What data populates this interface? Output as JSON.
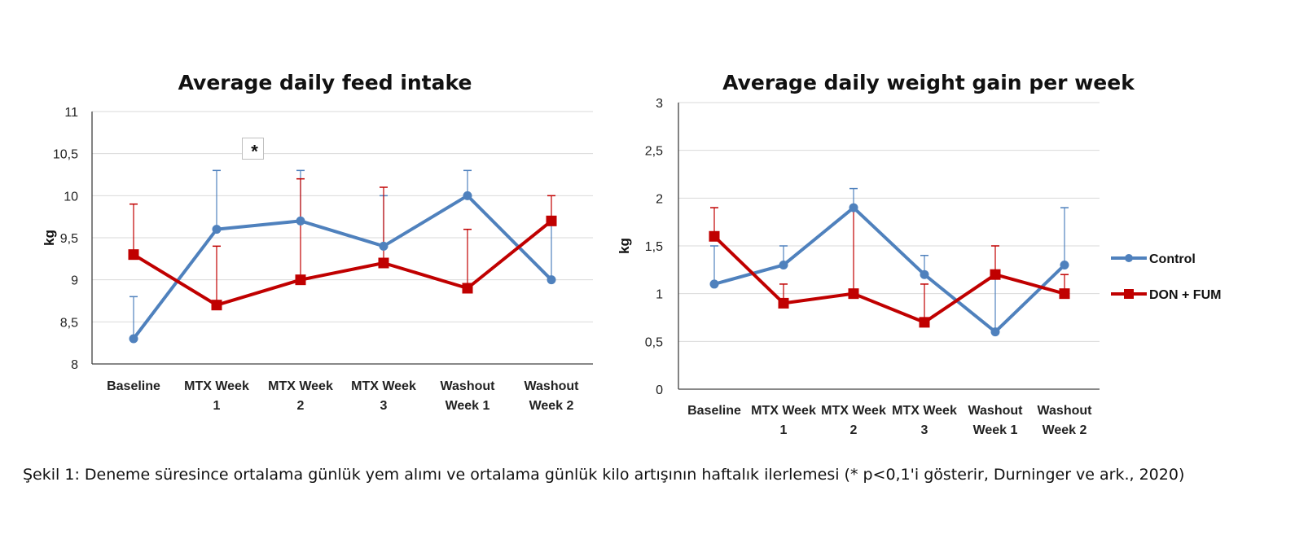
{
  "colors": {
    "control": "#4f81bd",
    "don_fum": "#c00000",
    "grid": "#d9d9d9",
    "axis": "#404040"
  },
  "chart_data": [
    {
      "type": "line",
      "title": "Average daily feed intake",
      "xlabel": "",
      "ylabel": "kg",
      "categories": [
        [
          "Baseline"
        ],
        [
          "MTX Week",
          "1"
        ],
        [
          "MTX Week",
          "2"
        ],
        [
          "MTX Week",
          "3"
        ],
        [
          "Washout",
          "Week 1"
        ],
        [
          "Washout",
          "Week 2"
        ]
      ],
      "ylim": [
        8,
        11
      ],
      "yticks": [
        8,
        8.5,
        9,
        9.5,
        10,
        10.5,
        11
      ],
      "ytick_labels": [
        "8",
        "8,5",
        "9",
        "9,5",
        "10",
        "10,5",
        "11"
      ],
      "grid": true,
      "series": [
        {
          "name": "Control",
          "marker": "circle",
          "values": [
            8.3,
            9.6,
            9.7,
            9.4,
            10.0,
            9.0
          ],
          "error_upper": [
            8.8,
            10.3,
            10.3,
            10.0,
            10.3,
            9.7
          ]
        },
        {
          "name": "DON + FUM",
          "marker": "square",
          "values": [
            9.3,
            8.7,
            9.0,
            9.2,
            8.9,
            9.7
          ],
          "error_upper": [
            9.9,
            9.4,
            10.2,
            10.1,
            9.6,
            10.0
          ]
        }
      ],
      "annotations": [
        {
          "text": "*",
          "x_between": [
            1,
            2
          ],
          "y": 10.55,
          "boxed": true
        }
      ]
    },
    {
      "type": "line",
      "title": "Average daily weight gain per week",
      "xlabel": "",
      "ylabel": "kg",
      "categories": [
        [
          "Baseline"
        ],
        [
          "MTX Week",
          "1"
        ],
        [
          "MTX Week",
          "2"
        ],
        [
          "MTX Week",
          "3"
        ],
        [
          "Washout",
          "Week 1"
        ],
        [
          "Washout",
          "Week 2"
        ]
      ],
      "ylim": [
        0,
        3
      ],
      "yticks": [
        0,
        0.5,
        1,
        1.5,
        2,
        2.5,
        3
      ],
      "ytick_labels": [
        "0",
        "0,5",
        "1",
        "1,5",
        "2",
        "2,5",
        "3"
      ],
      "grid": true,
      "legend": "right",
      "series": [
        {
          "name": "Control",
          "marker": "circle",
          "values": [
            1.1,
            1.3,
            1.9,
            1.2,
            0.6,
            1.3
          ],
          "error_upper": [
            1.5,
            1.5,
            2.1,
            1.4,
            1.2,
            1.9
          ]
        },
        {
          "name": "DON + FUM",
          "marker": "square",
          "values": [
            1.6,
            0.9,
            1.0,
            0.7,
            1.2,
            1.0
          ],
          "error_upper": [
            1.9,
            1.1,
            1.9,
            1.1,
            1.5,
            1.2
          ]
        }
      ]
    }
  ],
  "caption": "Şekil 1: Deneme süresince ortalama günlük yem alımı ve ortalama günlük kilo artışının haftalık ilerlemesi (* p<0,1'i gösterir, Durninger ve ark., 2020)"
}
